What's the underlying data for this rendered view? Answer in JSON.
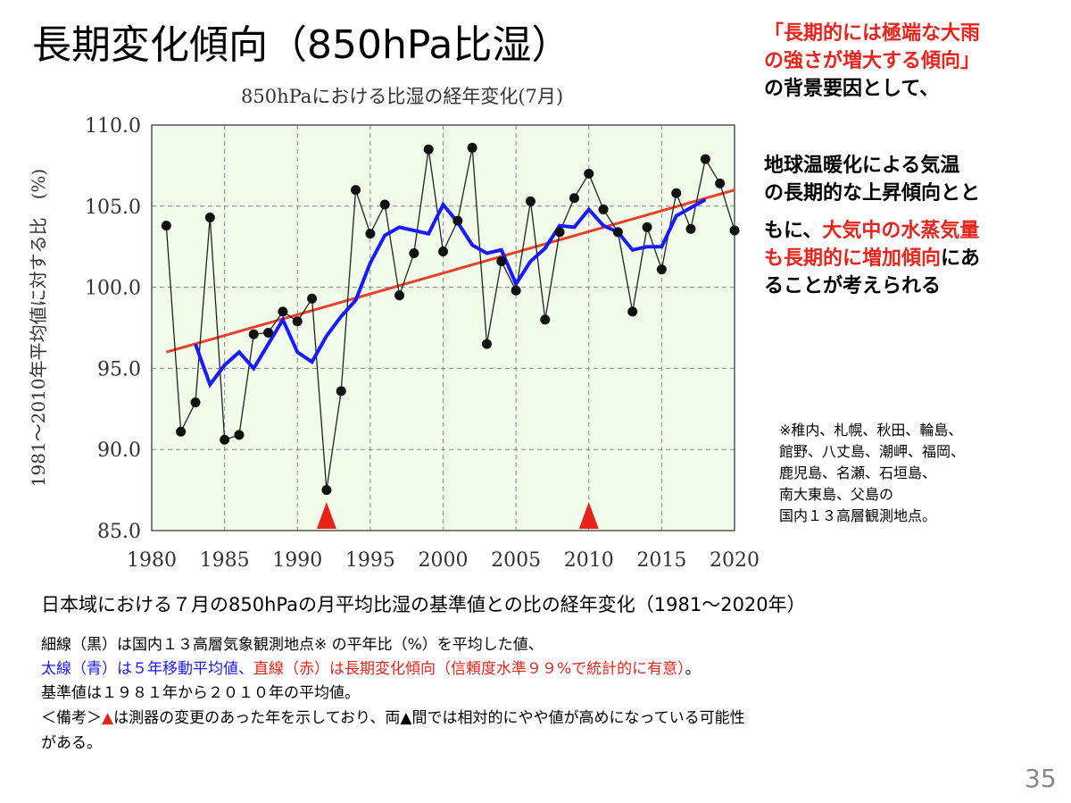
{
  "title": "長期変化傾向（850hPa比湿）",
  "side": {
    "l1": "「長期的には極端な大雨",
    "l2": "の強さが増大する傾向」",
    "l3": "の背景要因として、",
    "l4": "地球温暖化による気温",
    "l5": "の長期的な上昇傾向とと",
    "l6a": "もに、",
    "l6b": "大気中の水蒸気量",
    "l7a": "も長期的に増加傾向",
    "l7b": "にあ",
    "l8": "ることが考えられる"
  },
  "stations": [
    "※稚内、札幌、秋田、輪島、",
    "館野、八丈島、潮岬、福岡、",
    "鹿児島、名瀬、石垣島、",
    "南大東島、父島の",
    "国内１３高層観測地点。"
  ],
  "caption": "日本域における７月の850hPaの月平均比湿の基準値との比の経年変化（1981～2020年）",
  "notes": {
    "n1": "細線（黒）は国内１３高層気象観測地点※ の平年比（%）を平均した値、",
    "n2a": "太線（青）は５年移動平均値、",
    "n2b": "直線（赤）は長期変化傾向（信頼度水準９９%で統計的に有意）",
    "n2c": "。",
    "n3": "基準値は１９８１年から２０１０年の平均値。",
    "n4a": "＜備考＞",
    "n4b": "▲",
    "n4c": "は測器の変更のあった年を示しており、両▲間では相対的にやや値が高めになっている可能性",
    "n5": "がある。"
  },
  "page_number": "35",
  "chart_data": {
    "type": "line",
    "title": "850hPaにおける比湿の経年変化(7月)",
    "ylabel": "1981～2010年平均値に対する比　(%)",
    "xlim": [
      1980,
      2020
    ],
    "ylim": [
      85,
      110
    ],
    "xticks": [
      "1980",
      "1985",
      "1990",
      "1995",
      "2000",
      "2005",
      "2010",
      "2015",
      "2020"
    ],
    "yticks": [
      "85.0",
      "90.0",
      "95.0",
      "100.0",
      "105.0",
      "110.0"
    ],
    "grid": true,
    "series": [
      {
        "name": "平年比（黒）",
        "color": "#222222",
        "x_start": 1981,
        "values": [
          103.8,
          91.1,
          92.9,
          104.3,
          90.6,
          90.9,
          97.1,
          97.2,
          98.5,
          97.9,
          99.3,
          87.5,
          93.6,
          106.0,
          103.3,
          105.1,
          99.5,
          102.1,
          108.5,
          102.2,
          104.1,
          108.6,
          96.5,
          101.6,
          99.8,
          105.3,
          98.0,
          103.4,
          105.5,
          107.0,
          104.8,
          103.4,
          98.5,
          103.7,
          101.1,
          105.8,
          103.6,
          107.9,
          106.4,
          103.5
        ]
      },
      {
        "name": "5年移動平均（青）",
        "color": "#1a1aff",
        "x_start": 1983,
        "values": [
          96.5,
          94.0,
          95.2,
          96.0,
          95.0,
          96.5,
          98.0,
          96.0,
          95.4,
          97.0,
          98.2,
          99.2,
          101.5,
          103.2,
          103.7,
          103.5,
          103.3,
          105.1,
          104.0,
          102.6,
          102.1,
          102.3,
          100.2,
          101.6,
          102.4,
          103.8,
          103.7,
          104.8,
          103.8,
          103.4,
          102.3,
          102.5,
          102.5,
          104.4,
          104.9,
          105.4
        ]
      },
      {
        "name": "長期変化傾向（赤）",
        "color": "#e8402a",
        "x": [
          1981,
          2020
        ],
        "values": [
          96.0,
          106.0
        ]
      }
    ],
    "markers": [
      1992,
      2010
    ],
    "marker_color": "#e8231c",
    "background": "#f1fbea"
  }
}
